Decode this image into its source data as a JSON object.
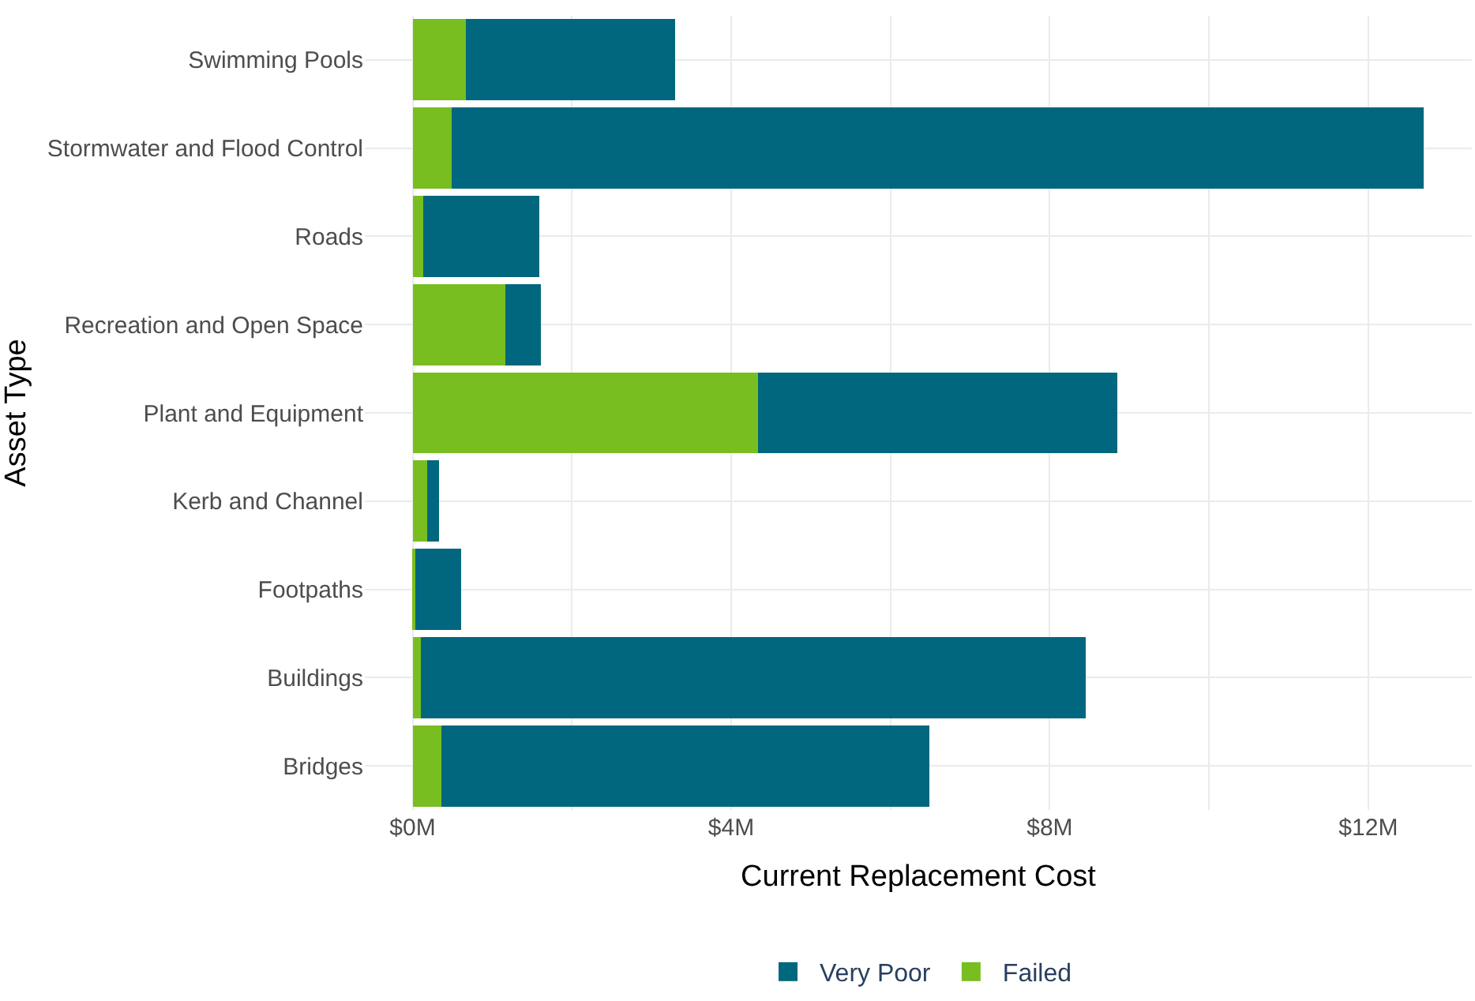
{
  "chart_data": {
    "type": "bar",
    "orientation": "horizontal",
    "stacked": true,
    "xlabel": "Current Replacement Cost",
    "ylabel": "Asset Type",
    "categories": [
      "Swimming Pools",
      "Stormwater and Flood Control",
      "Roads",
      "Recreation and Open Space",
      "Plant and Equipment",
      "Kerb and Channel",
      "Footpaths",
      "Buildings",
      "Bridges"
    ],
    "series": [
      {
        "name": "Failed",
        "color": "#78be20",
        "values": [
          0.67,
          0.49,
          0.13,
          1.16,
          4.34,
          0.18,
          0.03,
          0.1,
          0.36
        ]
      },
      {
        "name": "Very Poor",
        "color": "#00677f",
        "values": [
          2.63,
          12.21,
          1.46,
          0.45,
          4.51,
          0.15,
          0.58,
          8.35,
          6.13
        ]
      }
    ],
    "xlim": [
      -0.6,
      13.3
    ],
    "xticks": [
      {
        "value": 0,
        "label": "$0M"
      },
      {
        "value": 2,
        "label": null
      },
      {
        "value": 4,
        "label": "$4M"
      },
      {
        "value": 6,
        "label": null
      },
      {
        "value": 8,
        "label": "$8M"
      },
      {
        "value": 10,
        "label": null
      },
      {
        "value": 12,
        "label": "$12M"
      }
    ],
    "grid": true,
    "legend": "bottom"
  }
}
